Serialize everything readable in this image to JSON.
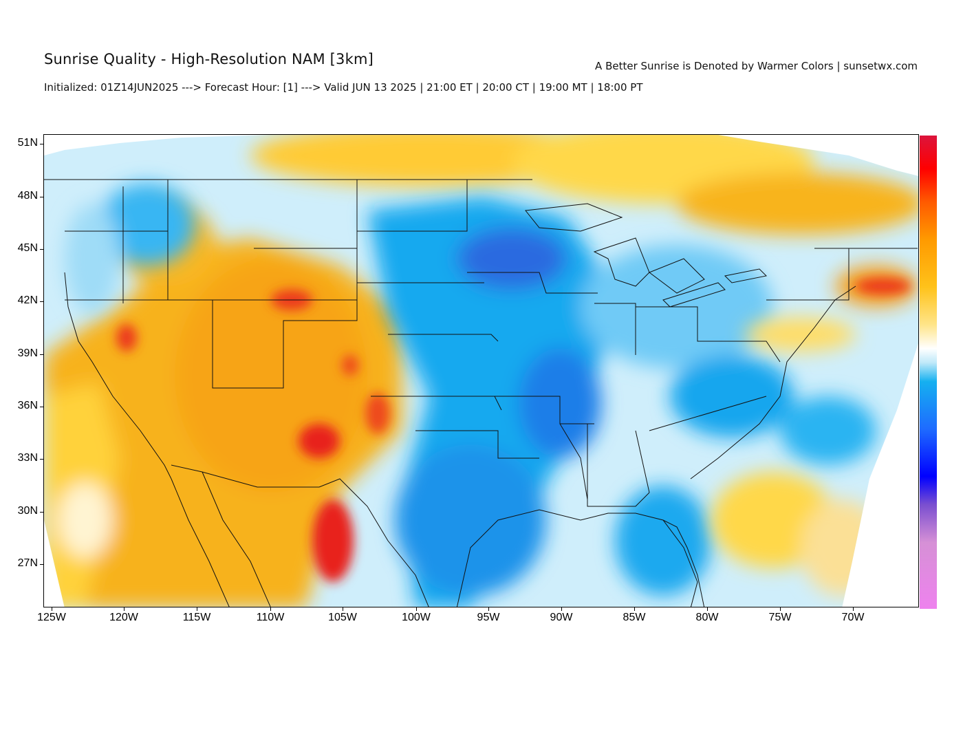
{
  "header": {
    "title": "Sunrise Quality - High-Resolution NAM [3km]",
    "subtitle": "Initialized: 01Z14JUN2025 ---> Forecast Hour: [1] ---> Valid JUN 13 2025 | 21:00 ET | 20:00 CT | 19:00 MT | 18:00 PT",
    "credit": "A Better Sunrise is Denoted by Warmer Colors | sunsetwx.com"
  },
  "map": {
    "region": "Contiguous United States",
    "latitude_labels": [
      "51N",
      "48N",
      "45N",
      "42N",
      "39N",
      "36N",
      "33N",
      "30N",
      "27N"
    ],
    "longitude_labels": [
      "125W",
      "120W",
      "115W",
      "110W",
      "105W",
      "100W",
      "95W",
      "90W",
      "85W",
      "80W",
      "75W",
      "70W"
    ],
    "colors": {
      "background_field": "#fdfcf6",
      "warm_orange": "#f7b21c",
      "yellow": "#ffd23a",
      "hot_red": "#e8241a",
      "cool_blue": "#14a9ef",
      "deep_blue": "#2a5ad8",
      "pale_cyan": "#bfe9f9",
      "boundaries": "#111111"
    },
    "colorbar_stops": [
      "#ee82ee",
      "#d690d6",
      "#7a4fd0",
      "#0000ff",
      "#1e6bff",
      "#15b0f0",
      "#bfe9f9",
      "#ffffff",
      "#ffe58a",
      "#ffc21a",
      "#ff9a00",
      "#ff5a00",
      "#ff0000",
      "#dc143c"
    ]
  }
}
